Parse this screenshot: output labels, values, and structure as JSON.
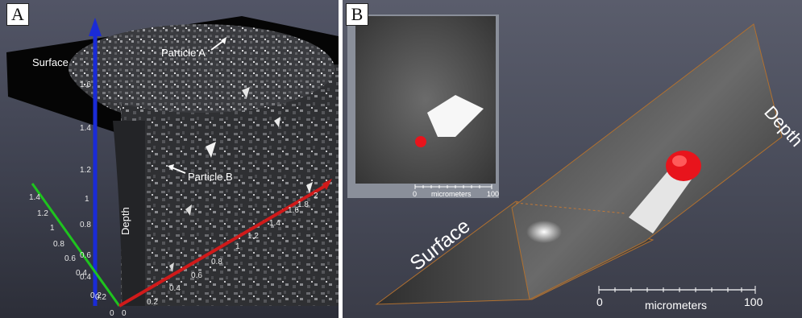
{
  "panel_a": {
    "letter": "A",
    "surface_label": "Surface",
    "depth_label": "Depth",
    "particle_a_label": "Particle A",
    "particle_b_label": "Particle B",
    "blue_axis_ticks": [
      "1.6",
      "1.4",
      "1.2",
      "1",
      "0.8",
      "0.6",
      "0.4",
      "0.2"
    ],
    "green_axis_ticks": [
      "1.4",
      "1.2",
      "1",
      "0.8",
      "0.6",
      "0.4",
      "0.2",
      "0"
    ],
    "red_axis_ticks": [
      "0",
      "0.2",
      "0.4",
      "0.6",
      "0.8",
      "1",
      "1.2",
      "1.4",
      "1.6",
      "1.8",
      "2"
    ],
    "origin_label": "0",
    "colors": {
      "blue_axis": "#1a2bd6",
      "green_axis": "#1ec41e",
      "red_axis": "#d01a1a"
    }
  },
  "panel_b": {
    "letter": "B",
    "surface_label": "Surface",
    "depth_label": "Depth",
    "inset_scale": {
      "start": "0",
      "end": "100",
      "unit": "micrometers"
    },
    "main_scale": {
      "start": "0",
      "end": "100",
      "unit": "micrometers"
    },
    "particle_color": "#e8141c"
  }
}
